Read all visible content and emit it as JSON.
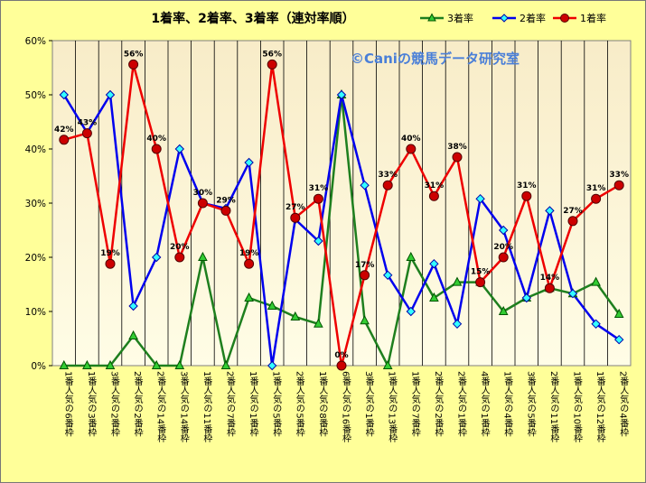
{
  "chart_data": {
    "type": "line",
    "title": "1着率、2着率、3着率（連対率順）",
    "watermark": "©Caniの競馬データ研究室",
    "ylim": [
      0,
      0.6
    ],
    "yticks": [
      "0%",
      "10%",
      "20%",
      "30%",
      "40%",
      "50%",
      "60%"
    ],
    "categories": [
      "1番人気の6番枠",
      "1番人気の3番枠",
      "3番人気の2番枠",
      "2番人気の2番枠",
      "2番人気の14番枠",
      "3番人気の14番枠",
      "1番人気の11番枠",
      "2番人気の7番枠",
      "1番人気の1番枠",
      "1番人気の5番枠",
      "2番人気の5番枠",
      "1番人気の8番枠",
      "6番人気の16番枠",
      "3番人気の1番枠",
      "1番人気の13番枠",
      "1番人気の7番枠",
      "2番人気の2番枠",
      "2番人気の1番枠",
      "4番人気の1番枠",
      "1番人気の4番枠",
      "3番人気の5番枠",
      "2番人気の11番枠",
      "1番人気の10番枠",
      "1番人気の12番枠",
      "2番人気の4番枠"
    ],
    "series": [
      {
        "name": "3着率",
        "color": "#1e7f1e",
        "marker": "triangle",
        "fill": "#33cc33",
        "values": [
          0,
          0,
          0,
          0.055,
          0,
          0,
          0.2,
          0,
          0.125,
          0.11,
          0.09,
          0.077,
          0.5,
          0.083,
          0,
          0.2,
          0.125,
          0.154,
          0.154,
          0.1,
          0.125,
          0.143,
          0.133,
          0.154,
          0.095
        ]
      },
      {
        "name": "2着率",
        "color": "#0000ee",
        "marker": "diamond",
        "fill": "#33ffff",
        "values": [
          0.5,
          0.43,
          0.5,
          0.11,
          0.2,
          0.4,
          0.3,
          0.29,
          0.375,
          0,
          0.27,
          0.23,
          0.5,
          0.333,
          0.167,
          0.1,
          0.188,
          0.077,
          0.308,
          0.25,
          0.125,
          0.286,
          0.133,
          0.077,
          0.048
        ]
      },
      {
        "name": "1着率",
        "color": "#ee0000",
        "marker": "circle",
        "fill": "#cc0000",
        "values": [
          0.417,
          0.429,
          0.188,
          0.556,
          0.4,
          0.2,
          0.3,
          0.286,
          0.188,
          0.556,
          0.273,
          0.308,
          0,
          0.167,
          0.333,
          0.4,
          0.313,
          0.385,
          0.154,
          0.2,
          0.313,
          0.143,
          0.267,
          0.308,
          0.333
        ]
      }
    ],
    "data_labels": [
      "42%",
      "43%",
      "19%",
      "56%",
      "40%",
      "20%",
      "30%",
      "29%",
      "19%",
      "56%",
      "27%",
      "31%",
      "0%",
      "17%",
      "33%",
      "40%",
      "31%",
      "38%",
      "15%",
      "20%",
      "31%",
      "14%",
      "27%",
      "31%",
      "33%"
    ],
    "legend_order": [
      "3着率",
      "2着率",
      "1着率"
    ],
    "legend_position": "top-right",
    "grid": "vertical"
  }
}
